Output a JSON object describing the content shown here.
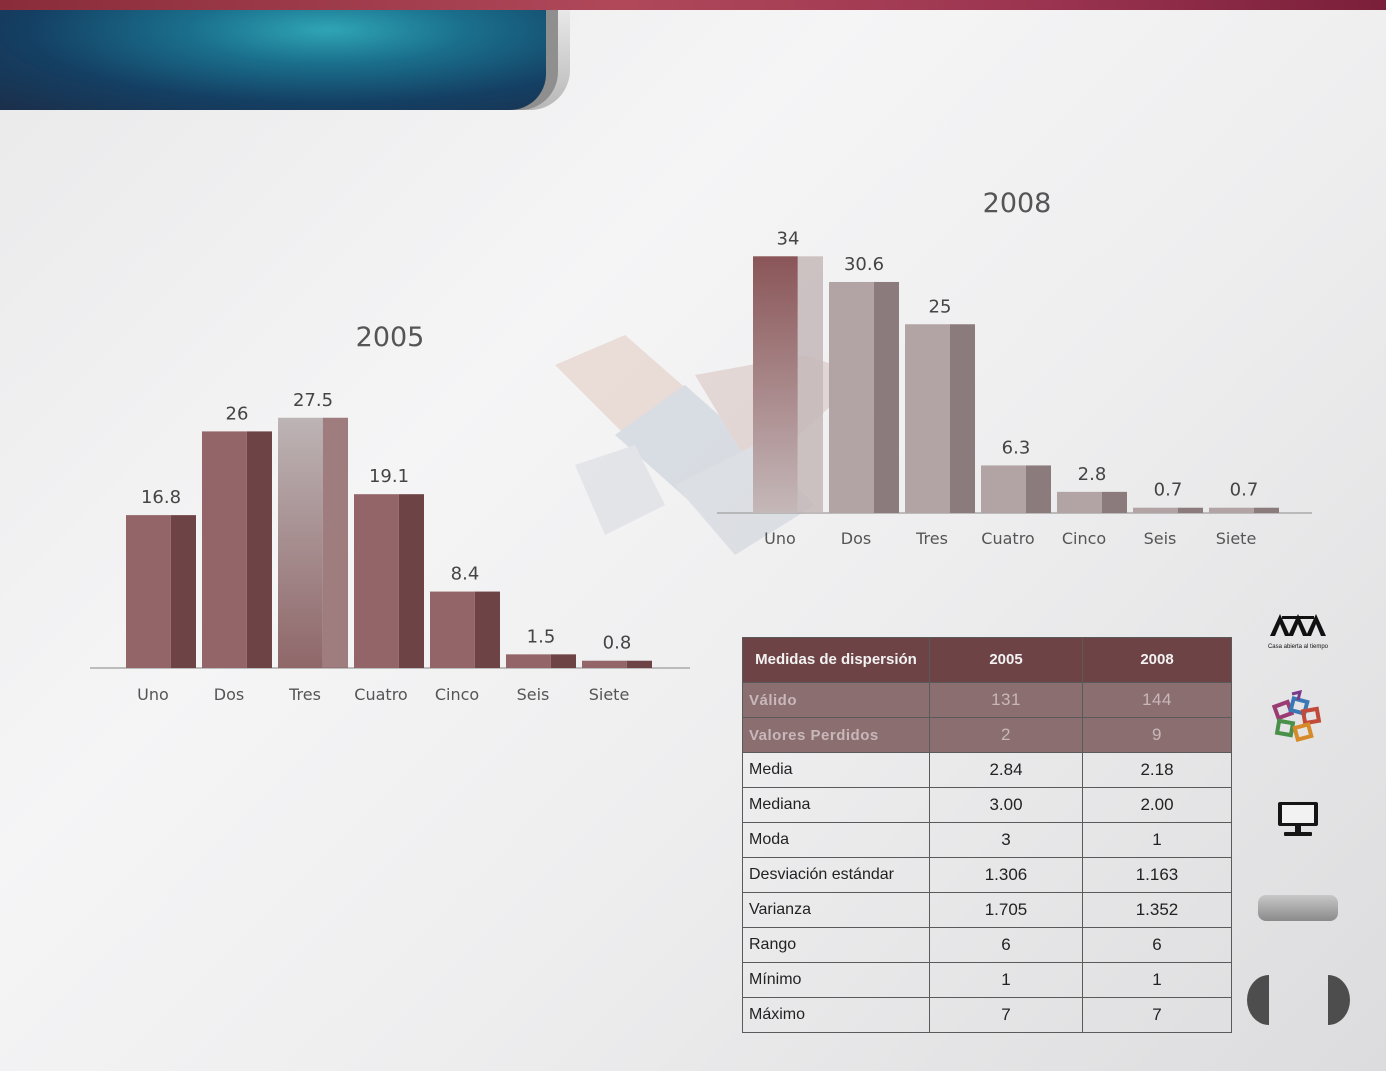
{
  "charts": [
    {
      "type": "bar",
      "title": "2005",
      "categories": [
        "Uno",
        "Dos",
        "Tres",
        "Cuatro",
        "Cinco",
        "Seis",
        "Siete"
      ],
      "values": [
        16.8,
        26,
        27.5,
        19.1,
        8.4,
        1.5,
        0.8
      ],
      "value_labels": [
        "16.8",
        "26",
        "27.5",
        "19.1",
        "8.4",
        "1.5",
        "0.8"
      ],
      "highlight_index": 2,
      "colors": {
        "bar": "#946568",
        "bar_dark": "#6e4346",
        "highlight_top": "#bdb4b5",
        "highlight_bottom": "#8f6769"
      }
    },
    {
      "type": "bar",
      "title": "2008",
      "categories": [
        "Uno",
        "Dos",
        "Tres",
        "Cuatro",
        "Cinco",
        "Seis",
        "Siete"
      ],
      "values": [
        34,
        30.6,
        25,
        6.3,
        2.8,
        0.7,
        0.7
      ],
      "value_labels": [
        "34",
        "30.6",
        "25",
        "6.3",
        "2.8",
        "0.7",
        "0.7"
      ],
      "highlight_index": 0,
      "colors": {
        "bar": "#b2a4a5",
        "bar_dark": "#8c7b7c",
        "highlight_top": "#8a5558",
        "highlight_bottom": "#c5b8b9"
      }
    }
  ],
  "table": {
    "headers": [
      "Medidas  de dispersión",
      "2005",
      "2008"
    ],
    "shaded_rows": [
      {
        "label": "Válido",
        "v2005": "131",
        "v2008": "144"
      },
      {
        "label": "Valores Perdidos",
        "v2005": "2",
        "v2008": "9"
      }
    ],
    "rows": [
      {
        "label": "Media",
        "v2005": "2.84",
        "v2008": "2.18"
      },
      {
        "label": "Mediana",
        "v2005": "3.00",
        "v2008": "2.00"
      },
      {
        "label": "Moda",
        "v2005": "3",
        "v2008": "1"
      },
      {
        "label": "Desviación estándar",
        "v2005": "1.306",
        "v2008": "1.163"
      },
      {
        "label": "Varianza",
        "v2005": "1.705",
        "v2008": "1.352"
      },
      {
        "label": "Rango",
        "v2005": "6",
        "v2008": "6"
      },
      {
        "label": "Mínimo",
        "v2005": "1",
        "v2008": "1"
      },
      {
        "label": "Máximo",
        "v2005": "7",
        "v2008": "7"
      }
    ]
  },
  "sidebar": {
    "logo_tagline": "Casa abierta al tiempo",
    "icons": [
      "uam-logo-icon",
      "mosaic-icon",
      "monitor-icon"
    ]
  }
}
